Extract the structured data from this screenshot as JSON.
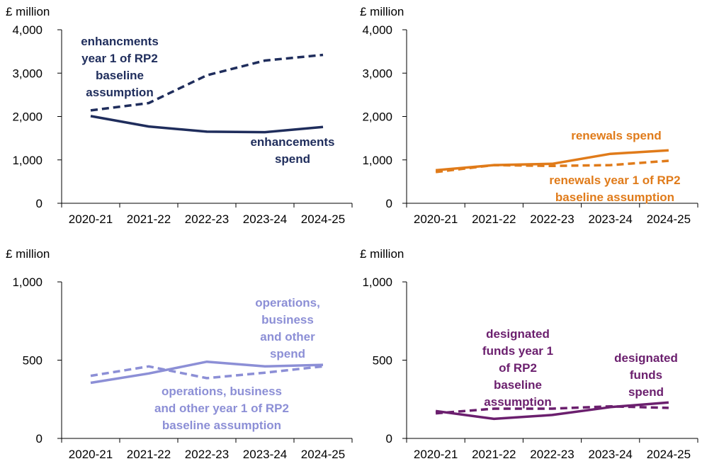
{
  "chart_data": [
    {
      "type": "line",
      "ylabel": "£ million",
      "ylim": [
        0,
        4000
      ],
      "yticks": [
        0,
        1000,
        2000,
        3000,
        4000
      ],
      "ytick_labels": [
        "0",
        "1,000",
        "2,000",
        "3,000",
        "4,000"
      ],
      "categories": [
        "2020-21",
        "2021-22",
        "2022-23",
        "2023-24",
        "2024-25"
      ],
      "color": "#1f2d5c",
      "series": [
        {
          "name": "enhancements spend",
          "style": "solid",
          "values": [
            2010,
            1770,
            1650,
            1640,
            1760
          ]
        },
        {
          "name": "enhancments year 1 of RP2 baseline assumption",
          "style": "dashed",
          "values": [
            2140,
            2310,
            2950,
            3290,
            3420
          ]
        }
      ],
      "annotations": [
        {
          "series": 1,
          "lines": [
            "enhancments",
            "year 1 of RP2",
            "baseline",
            "assumption"
          ]
        },
        {
          "series": 0,
          "lines": [
            "enhancements",
            "spend"
          ]
        }
      ]
    },
    {
      "type": "line",
      "ylabel": "£ million",
      "ylim": [
        0,
        4000
      ],
      "yticks": [
        0,
        1000,
        2000,
        3000,
        4000
      ],
      "ytick_labels": [
        "0",
        "1,000",
        "2,000",
        "3,000",
        "4,000"
      ],
      "categories": [
        "2020-21",
        "2021-22",
        "2022-23",
        "2023-24",
        "2024-25"
      ],
      "color": "#e07b1a",
      "series": [
        {
          "name": "renewals spend",
          "style": "solid",
          "values": [
            760,
            880,
            910,
            1140,
            1220
          ]
        },
        {
          "name": "renewals year 1 of RP2 baseline assumption",
          "style": "dashed",
          "values": [
            720,
            880,
            860,
            880,
            980
          ]
        }
      ],
      "annotations": [
        {
          "series": 0,
          "lines": [
            "renewals spend"
          ]
        },
        {
          "series": 1,
          "lines": [
            "renewals year 1 of RP2",
            "baseline assumption"
          ]
        }
      ]
    },
    {
      "type": "line",
      "ylabel": "£ million",
      "ylim": [
        0,
        1000
      ],
      "yticks": [
        0,
        500,
        1000
      ],
      "ytick_labels": [
        "0",
        "500",
        "1,000"
      ],
      "categories": [
        "2020-21",
        "2021-22",
        "2022-23",
        "2023-24",
        "2024-25"
      ],
      "color": "#8c8fd6",
      "series": [
        {
          "name": "operations, business and other spend",
          "style": "solid",
          "values": [
            355,
            415,
            490,
            460,
            470
          ]
        },
        {
          "name": "operations, business and other year 1 of RP2 baseline assumption",
          "style": "dashed",
          "values": [
            400,
            460,
            385,
            420,
            460
          ]
        }
      ],
      "annotations": [
        {
          "series": 0,
          "lines": [
            "operations,",
            "business",
            "and other",
            "spend"
          ]
        },
        {
          "series": 1,
          "lines": [
            "operations, business",
            "and other year 1 of RP2",
            "baseline assumption"
          ]
        }
      ]
    },
    {
      "type": "line",
      "ylabel": "£ million",
      "ylim": [
        0,
        1000
      ],
      "yticks": [
        0,
        500,
        1000
      ],
      "ytick_labels": [
        "0",
        "500",
        "1,000"
      ],
      "categories": [
        "2020-21",
        "2021-22",
        "2022-23",
        "2023-24",
        "2024-25"
      ],
      "color": "#6b1f6e",
      "series": [
        {
          "name": "designated funds spend",
          "style": "solid",
          "values": [
            175,
            125,
            150,
            200,
            230
          ]
        },
        {
          "name": "designated funds year 1 of RP2 baseline assumption",
          "style": "dashed",
          "values": [
            160,
            190,
            190,
            205,
            195
          ]
        }
      ],
      "annotations": [
        {
          "series": 1,
          "lines": [
            "designated",
            "funds year 1",
            "of RP2",
            "baseline",
            "assumption"
          ]
        },
        {
          "series": 0,
          "lines": [
            "designated",
            "funds",
            "spend"
          ]
        }
      ]
    }
  ]
}
